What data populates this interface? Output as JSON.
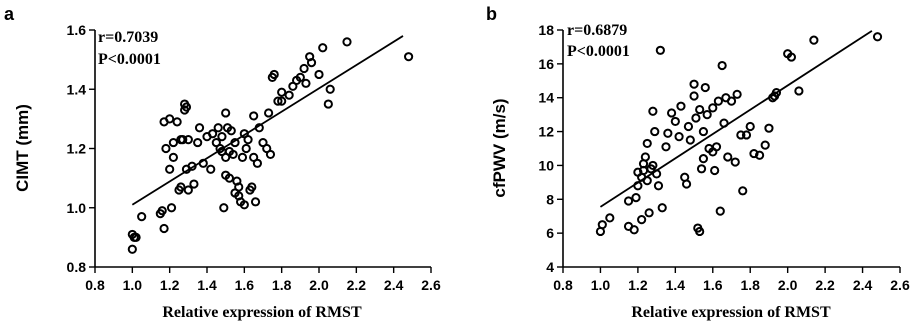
{
  "chart_data": [
    {
      "type": "scatter",
      "panel": "a",
      "stats": {
        "r": "r=0.7039",
        "p": "P<0.0001"
      },
      "xlabel": "Relative expression of RMST",
      "ylabel": "CIMT (mm)",
      "xlim": [
        0.8,
        2.6
      ],
      "ylim": [
        0.8,
        1.6
      ],
      "xticks": [
        "0.8",
        "1.0",
        "1.2",
        "1.4",
        "1.6",
        "1.8",
        "2.0",
        "2.2",
        "2.4",
        "2.6"
      ],
      "yticks": [
        "0.8",
        "1.0",
        "1.2",
        "1.4",
        "1.6"
      ],
      "fit_line": {
        "x": [
          1.0,
          2.45
        ],
        "y": [
          1.01,
          1.58
        ]
      },
      "x": [
        1.0,
        1.0,
        1.01,
        1.02,
        1.05,
        1.15,
        1.16,
        1.17,
        1.17,
        1.18,
        1.2,
        1.2,
        1.21,
        1.22,
        1.22,
        1.24,
        1.25,
        1.26,
        1.26,
        1.27,
        1.28,
        1.28,
        1.29,
        1.29,
        1.3,
        1.3,
        1.32,
        1.33,
        1.35,
        1.36,
        1.38,
        1.4,
        1.42,
        1.43,
        1.45,
        1.46,
        1.47,
        1.48,
        1.48,
        1.49,
        1.5,
        1.5,
        1.5,
        1.51,
        1.52,
        1.52,
        1.53,
        1.54,
        1.55,
        1.55,
        1.56,
        1.57,
        1.57,
        1.58,
        1.59,
        1.6,
        1.6,
        1.61,
        1.62,
        1.63,
        1.64,
        1.65,
        1.65,
        1.66,
        1.67,
        1.68,
        1.7,
        1.72,
        1.73,
        1.74,
        1.75,
        1.76,
        1.78,
        1.8,
        1.8,
        1.84,
        1.86,
        1.88,
        1.9,
        1.92,
        1.93,
        1.95,
        1.96,
        2.0,
        2.02,
        2.05,
        2.06,
        2.15,
        2.48
      ],
      "y": [
        0.86,
        0.91,
        0.9,
        0.9,
        0.97,
        0.98,
        0.99,
        0.93,
        1.29,
        1.2,
        1.3,
        1.13,
        1.0,
        1.17,
        1.22,
        1.29,
        1.06,
        1.23,
        1.07,
        1.23,
        1.35,
        1.33,
        1.34,
        1.13,
        1.06,
        1.23,
        1.14,
        1.08,
        1.22,
        1.27,
        1.15,
        1.24,
        1.13,
        1.25,
        1.22,
        1.27,
        1.2,
        1.24,
        1.19,
        1.0,
        1.32,
        1.11,
        1.17,
        1.27,
        1.1,
        1.19,
        1.26,
        1.18,
        1.05,
        1.22,
        1.09,
        1.07,
        1.04,
        1.02,
        1.17,
        1.01,
        1.25,
        1.2,
        1.23,
        1.06,
        1.07,
        1.17,
        1.31,
        1.02,
        1.15,
        1.27,
        1.22,
        1.2,
        1.32,
        1.18,
        1.44,
        1.45,
        1.36,
        1.36,
        1.39,
        1.38,
        1.41,
        1.43,
        1.44,
        1.47,
        1.42,
        1.51,
        1.49,
        1.45,
        1.54,
        1.35,
        1.4,
        1.56,
        1.51
      ]
    },
    {
      "type": "scatter",
      "panel": "b",
      "stats": {
        "r": "r=0.6879",
        "p": "P<0.0001"
      },
      "xlabel": "Relative expression of RMST",
      "ylabel": "cfPWV (m/s)",
      "xlim": [
        0.8,
        2.6
      ],
      "ylim": [
        4,
        18
      ],
      "xticks": [
        "0.8",
        "1.0",
        "1.2",
        "1.4",
        "1.6",
        "1.8",
        "2.0",
        "2.2",
        "2.4",
        "2.6"
      ],
      "yticks": [
        "4",
        "6",
        "8",
        "10",
        "12",
        "14",
        "16",
        "18"
      ],
      "fit_line": {
        "x": [
          1.0,
          2.45
        ],
        "y": [
          7.55,
          17.95
        ]
      },
      "x": [
        1.0,
        1.01,
        1.05,
        1.15,
        1.15,
        1.18,
        1.19,
        1.2,
        1.2,
        1.22,
        1.22,
        1.23,
        1.23,
        1.24,
        1.25,
        1.25,
        1.26,
        1.27,
        1.28,
        1.28,
        1.29,
        1.3,
        1.31,
        1.32,
        1.33,
        1.35,
        1.36,
        1.38,
        1.4,
        1.42,
        1.43,
        1.45,
        1.46,
        1.47,
        1.48,
        1.5,
        1.5,
        1.51,
        1.52,
        1.53,
        1.53,
        1.54,
        1.55,
        1.55,
        1.56,
        1.57,
        1.58,
        1.6,
        1.6,
        1.61,
        1.62,
        1.63,
        1.64,
        1.65,
        1.66,
        1.67,
        1.68,
        1.7,
        1.72,
        1.73,
        1.75,
        1.76,
        1.78,
        1.8,
        1.82,
        1.85,
        1.88,
        1.9,
        1.92,
        1.93,
        1.94,
        2.0,
        2.02,
        2.06,
        2.14,
        2.48
      ],
      "y": [
        6.1,
        6.5,
        6.9,
        6.4,
        7.9,
        6.2,
        8.1,
        9.6,
        8.8,
        9.3,
        6.8,
        9.7,
        10.1,
        10.5,
        9.1,
        11.3,
        7.2,
        9.8,
        10.0,
        13.2,
        12.0,
        9.5,
        8.8,
        16.8,
        7.5,
        11.1,
        11.9,
        13.1,
        12.6,
        11.7,
        13.5,
        9.3,
        8.9,
        12.3,
        11.5,
        14.1,
        14.8,
        12.8,
        6.3,
        6.1,
        13.3,
        9.8,
        10.4,
        12.0,
        14.6,
        13.0,
        11.0,
        13.4,
        10.8,
        9.7,
        11.1,
        13.8,
        7.3,
        15.9,
        12.5,
        14.0,
        10.5,
        13.8,
        10.2,
        14.2,
        11.8,
        8.5,
        11.8,
        12.3,
        10.7,
        10.6,
        11.2,
        12.2,
        14.0,
        14.1,
        14.3,
        16.6,
        16.4,
        14.4,
        17.4,
        17.6
      ]
    }
  ]
}
